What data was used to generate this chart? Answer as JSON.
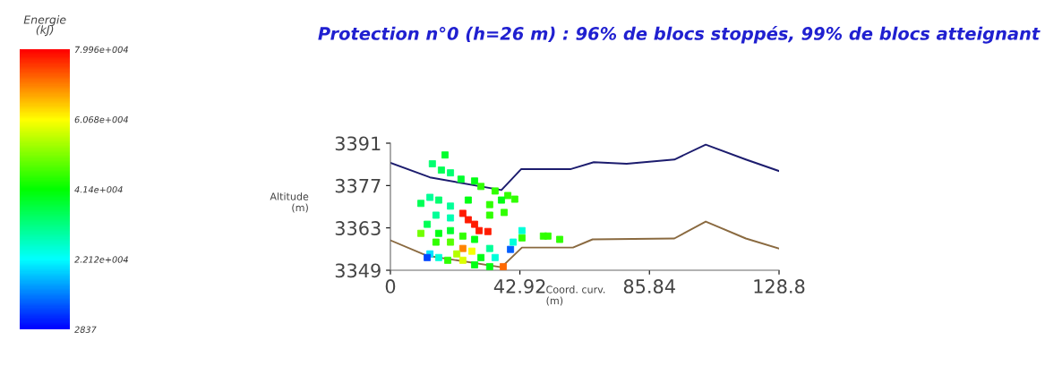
{
  "chart_data": {
    "type": "scatter",
    "title": "Protection n°0 (h=26 m) : 96% de blocs stoppés, 99% de blocs atteignant",
    "xlabel": "Coord. curv.\n(m)",
    "ylabel": "Altitude\n(m)",
    "clabel": "Energie\n(kJ)",
    "xlim": [
      0,
      128.8
    ],
    "ylim": [
      3349,
      3391
    ],
    "xticks": [
      0,
      42.92,
      85.84,
      128.8
    ],
    "yticks": [
      3349,
      3363,
      3377,
      3391
    ],
    "clim": [
      2837,
      79960
    ],
    "cticks": [
      {
        "value": 2837,
        "label": "2837"
      },
      {
        "value": 22120,
        "label": "2.212e+004"
      },
      {
        "value": 41400,
        "label": "4.14e+004"
      },
      {
        "value": 60680,
        "label": "6.068e+004"
      },
      {
        "value": 79960,
        "label": "7.996e+004"
      }
    ],
    "grid": false,
    "legend": false,
    "series": [
      {
        "type": "line",
        "color": "#1c1c6e",
        "x": [
          0,
          13.1,
          36.8,
          43.3,
          59.6,
          67.4,
          78.3,
          94.1,
          104.5,
          117.8,
          128.8
        ],
        "values": [
          3384.5,
          3379.7,
          3375.5,
          3382.4,
          3382.4,
          3384.7,
          3384.2,
          3385.6,
          3390.5,
          3385.6,
          3381.8
        ]
      },
      {
        "type": "line",
        "color": "#8a6a40",
        "x": [
          0,
          12.2,
          36.8,
          43.6,
          60.5,
          67,
          94.1,
          104.5,
          117.8,
          128.8
        ],
        "values": [
          3358.9,
          3353.8,
          3350,
          3356.5,
          3356.5,
          3359.2,
          3359.5,
          3365.1,
          3359.5,
          3356.2
        ]
      },
      {
        "marker": "square",
        "colors": [
          "#00ff2d",
          "#00ff6f",
          "#00ff54",
          "#00ff6f",
          "#00ff2d",
          "#00ff13",
          "#30ff00",
          "#30ff00",
          "#30ff00",
          "#30ff00",
          "#00ff97",
          "#00ff6f",
          "#00ff54",
          "#00ff97",
          "#00ff13",
          "#30ff00",
          "#00ff13",
          "#30ff00",
          "#30ff00",
          "#00ff97",
          "#00ffb1",
          "#00ff54",
          "#72ff00",
          "#ff1b00",
          "#ff1b00",
          "#ff1b00",
          "#ff1b00",
          "#ff1b00",
          "#00ff13",
          "#00ff2d",
          "#30ff00",
          "#00ff13",
          "#30ff00",
          "#57ff00",
          "#ff8400",
          "#b4ff00",
          "#f6ff00",
          "#dbff00",
          "#30ff00",
          "#00ff13",
          "#00ff97",
          "#00ffd9",
          "#005fff",
          "#00ffd9",
          "#00e3ff",
          "#0044ff",
          "#00ffd9",
          "#00ff13",
          "#00ff13",
          "#ff6900",
          "#00ffd9",
          "#30ff00",
          "#30ff00",
          "#30ff00",
          "#30ff00"
        ],
        "x": [
          18.1,
          13.9,
          16.9,
          19.9,
          23.4,
          27.9,
          30,
          34.7,
          38.9,
          41.2,
          13.1,
          16,
          10.1,
          19.9,
          25.8,
          32.9,
          36.8,
          37.7,
          32.9,
          15.1,
          19.9,
          12.2,
          10.1,
          24,
          25.8,
          27.9,
          29.4,
          32.3,
          16,
          19.9,
          24,
          27.9,
          15.1,
          19.9,
          24,
          22,
          27,
          24,
          19,
          30,
          32.9,
          34.7,
          39.8,
          40.7,
          13.1,
          12.2,
          16,
          27.9,
          32.9,
          37.4,
          43.6,
          43.6,
          50.7,
          52.2,
          56.1
        ],
        "values": [
          3387.1,
          3384.2,
          3382.1,
          3381.2,
          3379.1,
          3378.5,
          3376.7,
          3375.2,
          3373.7,
          3372.5,
          3373.1,
          3372.2,
          3371.1,
          3370.2,
          3372.2,
          3370.7,
          3372.2,
          3368.1,
          3367.2,
          3367.2,
          3366.3,
          3364.2,
          3361.2,
          3367.8,
          3365.7,
          3364.2,
          3362.1,
          3361.8,
          3361.2,
          3362.1,
          3360.3,
          3359.2,
          3358.3,
          3358.3,
          3356.2,
          3354.4,
          3355.3,
          3352.3,
          3352.3,
          3353.2,
          3356.2,
          3353.2,
          3355.9,
          3358.3,
          3354.4,
          3353.2,
          3353.2,
          3350.8,
          3350.2,
          3350.2,
          3362.1,
          3359.7,
          3360.3,
          3360.3,
          3359.2
        ],
        "cvalues": [
          38000,
          33000,
          35000,
          33000,
          38000,
          40000,
          45000,
          45000,
          45000,
          45000,
          30000,
          33000,
          35000,
          30000,
          40000,
          45000,
          40000,
          45000,
          45000,
          30000,
          28000,
          35000,
          50000,
          78000,
          78000,
          78000,
          78000,
          78000,
          40000,
          38000,
          45000,
          40000,
          45000,
          48000,
          70000,
          55000,
          60000,
          58000,
          45000,
          40000,
          30000,
          25000,
          10000,
          25000,
          20000,
          8000,
          25000,
          40000,
          40000,
          72000,
          25000,
          45000,
          45000,
          45000,
          45000
        ]
      }
    ]
  }
}
